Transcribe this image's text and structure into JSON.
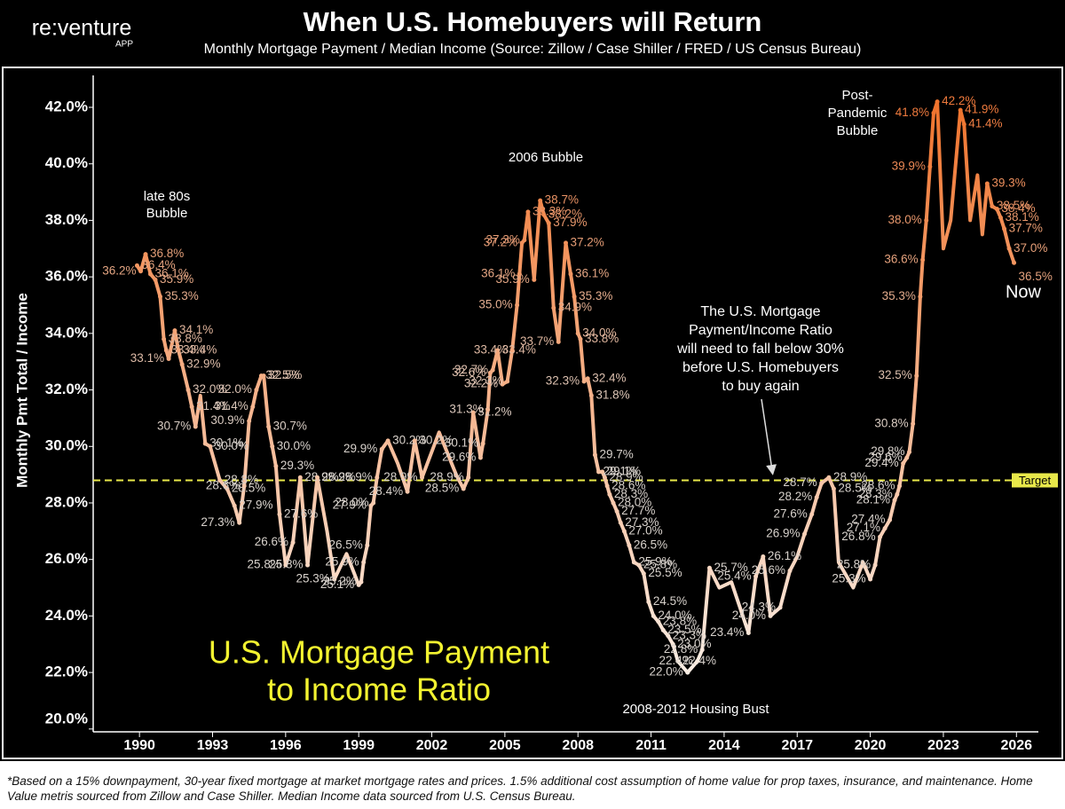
{
  "header": {
    "logo": "re:venture",
    "logo_sub": "APP"
  },
  "footnote": "*Based on a 15% downpayment, 30-year fixed mortgage at market mortgage rates and prices. 1.5% additional cost assumption of home value for prop taxes, insurance, and maintenance. Home Value metris sourced from Zillow and Case Shiller. Median Income data sourced from U.S. Census Bureau.",
  "chart_data": {
    "type": "line",
    "title": "When U.S. Homebuyers will Return",
    "subtitle": "Monthly Mortgage Payment  / Median Income (Source: Zillow / Case Shiller / FRED / US Census Bureau)",
    "y_label": "Monthly Pmt Total / Income",
    "big_label": [
      "U.S. Mortgage Payment",
      "to Income Ratio"
    ],
    "annotations": [
      [
        "late 80s",
        "Bubble"
      ],
      [
        "2006 Bubble"
      ],
      [
        "Post-",
        "Pandemic",
        "Bubble"
      ],
      [
        "2008-2012 Housing Bust"
      ],
      [
        "Now"
      ],
      [
        "The U.S. Mortgage",
        "Payment/Income Ratio",
        "will need to fall below 30%",
        "before U.S. Homebuyers",
        "to buy again"
      ]
    ],
    "target": {
      "value": 28.8,
      "label": "Target"
    },
    "xlim": [
      1988.1,
      2026.9
    ],
    "xticks": [
      1990,
      1993,
      1996,
      1999,
      2002,
      2005,
      2008,
      2011,
      2014,
      2017,
      2020,
      2023,
      2026
    ],
    "ylim": [
      19.9,
      43.13
    ],
    "yticks": [
      {
        "value": 20,
        "label": "20.0%"
      },
      {
        "value": 22,
        "label": "22.0%"
      },
      {
        "value": 24,
        "label": "24.0%"
      },
      {
        "value": 26,
        "label": "26.0%"
      },
      {
        "value": 28,
        "label": "28.0%"
      },
      {
        "value": 30,
        "label": "30.0%"
      },
      {
        "value": 32,
        "label": "32.0%"
      },
      {
        "value": 34,
        "label": "34.0%"
      },
      {
        "value": 36,
        "label": "36.0%"
      },
      {
        "value": 38,
        "label": "38.0%"
      },
      {
        "value": 40,
        "label": "40.0%"
      },
      {
        "value": 42,
        "label": "42.0%"
      }
    ],
    "color_low": "#fbeee4",
    "color_high": "#f0742e",
    "label_color_low": "#d8d2cc",
    "label_color_high": "#f07a3c",
    "series": [
      {
        "name": "Mortgage Payment / Income",
        "x": [
          1989.9,
          1990.05,
          1990.25,
          1990.45,
          1990.65,
          1990.85,
          1991.0,
          1991.1,
          1991.2,
          1991.45,
          1991.6,
          1991.75,
          1992.0,
          1992.15,
          1992.3,
          1992.5,
          1992.7,
          1992.9,
          1993.3,
          1993.6,
          1993.9,
          1994.1,
          1994.3,
          1994.5,
          1994.65,
          1994.8,
          1995.0,
          1995.1,
          1995.3,
          1995.45,
          1995.6,
          1995.75,
          1996.0,
          1996.3,
          1996.6,
          1996.9,
          1997.3,
          1997.7,
          1998.0,
          1998.5,
          1999.0,
          1999.1,
          1999.2,
          1999.35,
          1999.5,
          1999.6,
          1999.75,
          1999.95,
          2000.2,
          2000.6,
          2001.0,
          2001.3,
          2001.6,
          2002.3,
          2003.0,
          2003.3,
          2003.5,
          2003.7,
          2004.0,
          2004.1,
          2004.3,
          2004.4,
          2004.5,
          2004.7,
          2004.9,
          2005.1,
          2005.3,
          2005.5,
          2005.6,
          2005.7,
          2005.8,
          2005.95,
          2006.2,
          2006.45,
          2006.6,
          2006.8,
          2007.0,
          2007.2,
          2007.5,
          2007.7,
          2007.85,
          2008.0,
          2008.1,
          2008.25,
          2008.4,
          2008.55,
          2008.7,
          2008.85,
          2009.0,
          2009.1,
          2009.2,
          2009.3,
          2009.45,
          2009.6,
          2009.75,
          2009.9,
          2010.1,
          2010.3,
          2010.5,
          2010.7,
          2010.9,
          2011.1,
          2011.3,
          2011.5,
          2011.7,
          2011.9,
          2012.1,
          2012.5,
          2012.9,
          2013.1,
          2013.4,
          2013.8,
          2014.3,
          2015.0,
          2015.3,
          2015.6,
          2015.9,
          2016.3,
          2016.7,
          2017.0,
          2017.3,
          2017.6,
          2017.8,
          2018.0,
          2018.3,
          2018.5,
          2018.7,
          2019.3,
          2019.7,
          2020.0,
          2020.2,
          2020.4,
          2020.6,
          2020.8,
          2021.0,
          2021.1,
          2021.2,
          2021.35,
          2021.5,
          2021.6,
          2021.75,
          2021.9,
          2022.05,
          2022.15,
          2022.3,
          2022.45,
          2022.6,
          2022.75,
          2023.0,
          2023.3,
          2023.7,
          2023.85,
          2024.1,
          2024.4,
          2024.6,
          2024.8,
          2025.0,
          2025.2,
          2025.35,
          2025.5,
          2025.7,
          2025.9
        ],
        "values": [
          36.4,
          36.2,
          36.8,
          36.1,
          35.9,
          35.3,
          33.8,
          33.4,
          33.1,
          34.1,
          33.4,
          32.9,
          32.0,
          31.4,
          30.7,
          31.8,
          30.1,
          30.0,
          28.8,
          28.5,
          27.9,
          27.3,
          28.6,
          30.9,
          31.4,
          32.0,
          32.5,
          32.5,
          30.7,
          30.0,
          29.3,
          27.6,
          25.8,
          26.6,
          28.9,
          25.8,
          28.9,
          27.0,
          25.3,
          26.2,
          25.1,
          25.2,
          25.9,
          26.5,
          27.9,
          28.0,
          28.9,
          29.9,
          30.2,
          29.4,
          28.4,
          30.2,
          28.9,
          30.5,
          29.0,
          28.5,
          28.9,
          31.2,
          29.6,
          30.1,
          31.3,
          32.6,
          32.7,
          33.4,
          32.2,
          32.3,
          33.4,
          35.0,
          36.1,
          37.2,
          37.3,
          38.3,
          35.9,
          38.7,
          38.2,
          37.9,
          34.9,
          33.7,
          37.2,
          36.1,
          35.3,
          34.0,
          33.8,
          32.3,
          32.4,
          31.8,
          29.7,
          29.1,
          29.1,
          28.9,
          28.6,
          28.3,
          28.0,
          27.7,
          27.3,
          27.0,
          26.5,
          25.9,
          25.8,
          25.5,
          24.5,
          24.0,
          23.8,
          23.5,
          23.3,
          23.0,
          22.4,
          22.0,
          22.4,
          22.8,
          25.7,
          25.0,
          25.2,
          23.4,
          25.4,
          26.1,
          24.0,
          24.3,
          25.6,
          26.1,
          26.9,
          27.6,
          28.2,
          28.7,
          28.9,
          28.5,
          25.9,
          25.0,
          25.9,
          25.3,
          25.8,
          26.8,
          27.1,
          27.4,
          28.1,
          28.3,
          28.6,
          29.4,
          29.6,
          29.8,
          30.8,
          32.5,
          35.3,
          36.6,
          38.0,
          39.9,
          41.8,
          42.2,
          37.0,
          38.0,
          41.9,
          41.4,
          38.0,
          39.6,
          37.5,
          39.3,
          38.5,
          38.4,
          38.1,
          37.7,
          37.0,
          36.5
        ],
        "value_labels": [
          "36.4%",
          "36.2%",
          "36.8%",
          "36.1%",
          "35.9%",
          "35.3%",
          "33.8%",
          "33.4%",
          "33.1%",
          "34.1%",
          "33.4%",
          "32.9%",
          "32.0%",
          "31.4%",
          "30.7%",
          null,
          "30.1%",
          "30.0%",
          "28.8%",
          "28.5%",
          "27.9%",
          "27.3%",
          "28.6%",
          "30.9%",
          "31.4%",
          "32.0%",
          "32.5%",
          "32.5%",
          "30.7%",
          "30.0%",
          "29.3%",
          "27.6%",
          "25.8%",
          "26.6%",
          "28.9%",
          "25.8%",
          "28.9%",
          null,
          "25.3%",
          null,
          "25.1%",
          "25.2%",
          "25.9%",
          "26.5%",
          "27.9%",
          "28.0%",
          "28.9%",
          "29.9%",
          "30.2%",
          null,
          "28.4%",
          "30.2%",
          "28.9%",
          null,
          null,
          "28.5%",
          "28.9%",
          "31.2%",
          "29.6%",
          "30.1%",
          "31.3%",
          "32.6%",
          "32.7%",
          "33.4%",
          "32.2%",
          "32.3%",
          "33.4%",
          "35.0%",
          "36.1%",
          "37.2%",
          "37.3%",
          "38.3%",
          "35.9%",
          "38.7%",
          "38.2%",
          "37.9%",
          "34.9%",
          "33.7%",
          "37.2%",
          "36.1%",
          "35.3%",
          "34.0%",
          "33.8%",
          "32.3%",
          "32.4%",
          "31.8%",
          "29.7%",
          "29.1%",
          "29.1%",
          "28.9%",
          "28.6%",
          "28.3%",
          "28.0%",
          "27.7%",
          "27.3%",
          "27.0%",
          "26.5%",
          "25.9%",
          "25.8%",
          "25.5%",
          "24.5%",
          "24.0%",
          "23.8%",
          "23.5%",
          "23.3%",
          "23.0%",
          "22.4%",
          "22.0%",
          "22.4%",
          "22.8%",
          "25.7%",
          null,
          null,
          "23.4%",
          "25.4%",
          "26.1%",
          "24.0%",
          "24.3%",
          "25.6%",
          null,
          "26.9%",
          "27.6%",
          "28.2%",
          "28.7%",
          "28.9%",
          "28.5%",
          null,
          null,
          null,
          "25.3%",
          "25.8%",
          "26.8%",
          "27.1%",
          "27.4%",
          "28.1%",
          "28.3%",
          "28.6%",
          "29.4%",
          "29.6%",
          "29.8%",
          "30.8%",
          "32.5%",
          "35.3%",
          "36.6%",
          "38.0%",
          "39.9%",
          "41.8%",
          "42.2%",
          null,
          null,
          "41.9%",
          "41.4%",
          null,
          null,
          null,
          "39.3%",
          "38.5%",
          "38.4%",
          "38.1%",
          "37.7%",
          "37.0%",
          "36.5%"
        ]
      }
    ]
  }
}
